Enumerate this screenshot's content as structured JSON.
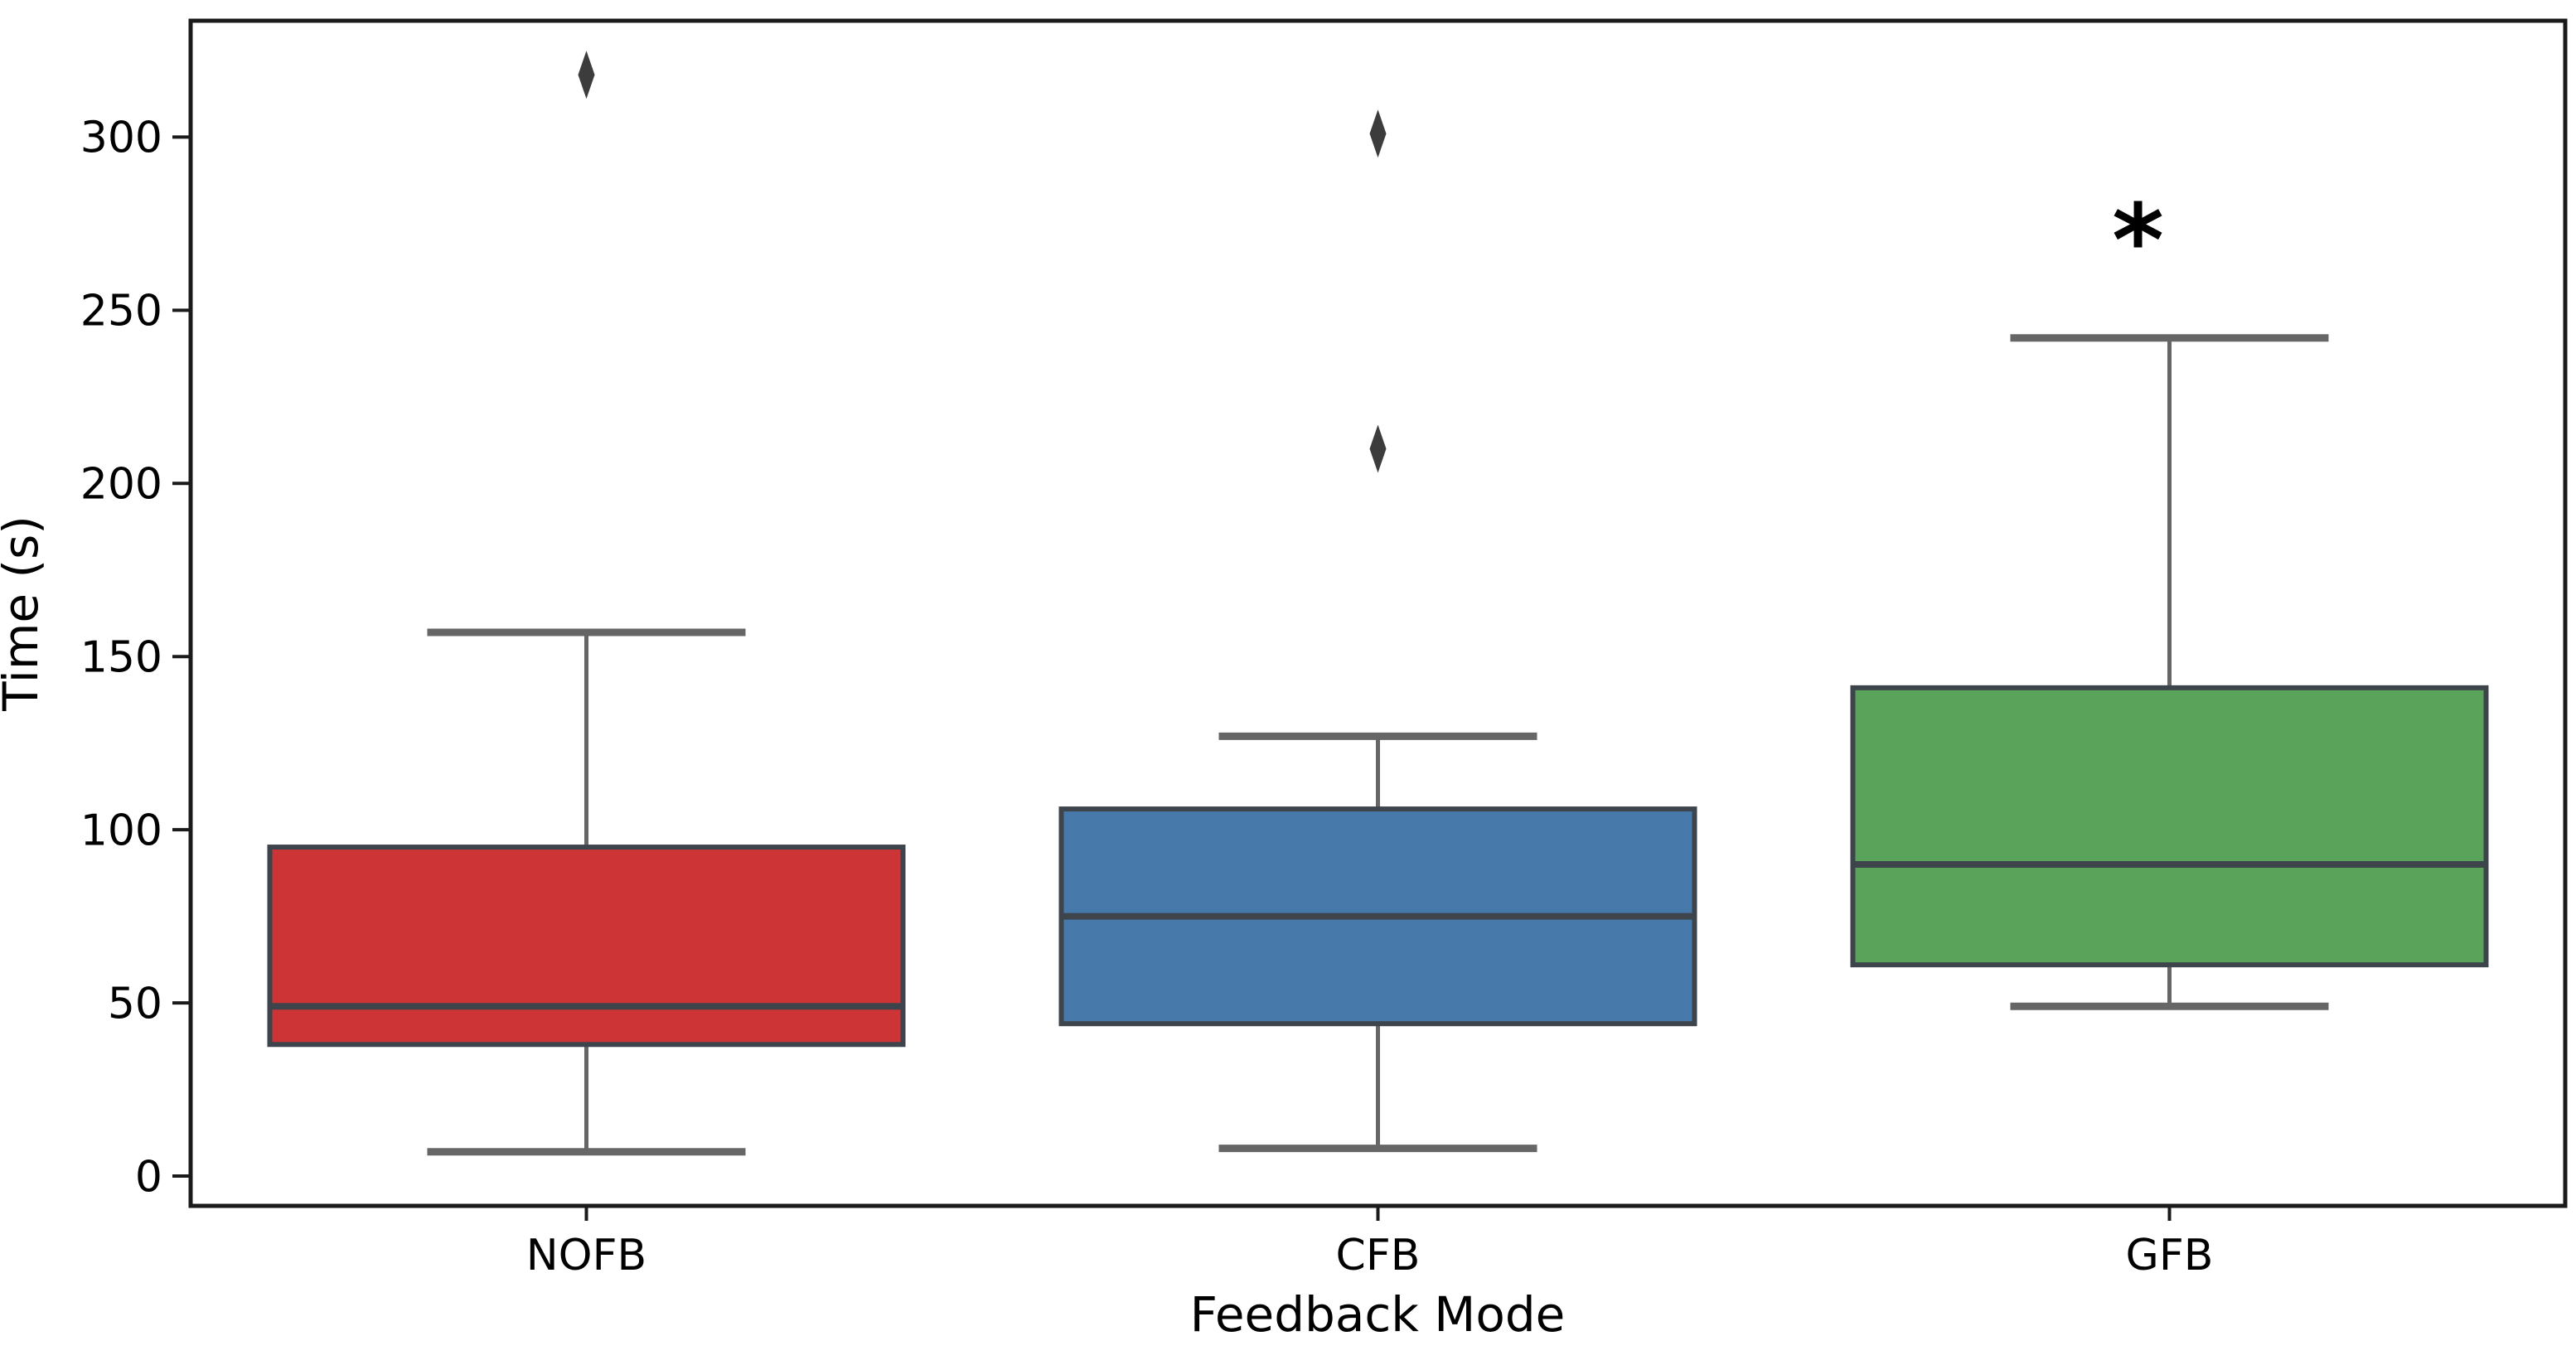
{
  "figure": {
    "background": "#ffffff"
  },
  "chart_data": {
    "type": "box",
    "title": "",
    "xlabel": "Feedback Mode",
    "ylabel": "Time (s)",
    "categories": [
      "NOFB",
      "CFB",
      "GFB"
    ],
    "ylim": [
      -8.6,
      333.6
    ],
    "yticks": [
      0,
      50,
      100,
      150,
      200,
      250,
      300
    ],
    "grid": false,
    "legend": null,
    "series": [
      {
        "name": "NOFB",
        "color": "#cc3435",
        "whisker_low": 7,
        "q1": 38,
        "median": 49,
        "q3": 95,
        "whisker_high": 157,
        "outliers": [
          318
        ]
      },
      {
        "name": "CFB",
        "color": "#4779ab",
        "whisker_low": 8,
        "q1": 44,
        "median": 75,
        "q3": 106,
        "whisker_high": 127,
        "outliers": [
          210,
          301
        ]
      },
      {
        "name": "GFB",
        "color": "#59a35a",
        "whisker_low": 49,
        "q1": 61,
        "median": 90,
        "q3": 141,
        "whisker_high": 242,
        "outliers": []
      }
    ],
    "annotations": [
      {
        "text": "*",
        "category": "GFB",
        "value": 274,
        "x_offset": -38,
        "meaning": "significance-marker"
      }
    ],
    "style": {
      "box_edge_color": "#3e444c",
      "median_color": "#3e444c",
      "whisker_color": "#666666",
      "cap_color": "#666666",
      "flier_color": "#3c3c3c",
      "spine_color": "#1a1a1a",
      "text_color": "#000000",
      "annotation_color": "#000000"
    }
  }
}
